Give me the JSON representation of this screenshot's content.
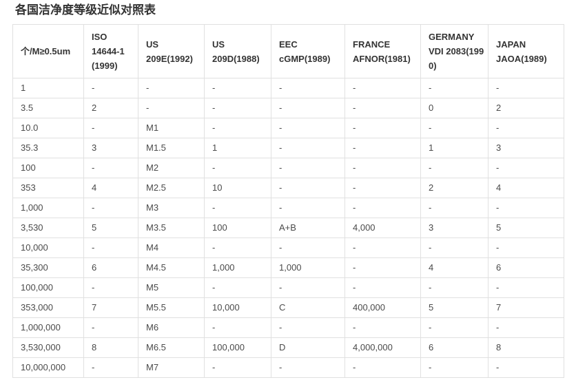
{
  "page": {
    "title": "各国洁净度等级近似对照表"
  },
  "table": {
    "columns": [
      {
        "id": "particles-per-m3",
        "lines": [
          "个/M≥0.5um"
        ]
      },
      {
        "id": "iso-14644-1",
        "lines": [
          "ISO",
          "14644-1",
          "(1999)"
        ]
      },
      {
        "id": "us-209e",
        "lines": [
          "US",
          "209E(1992)"
        ]
      },
      {
        "id": "us-209d",
        "lines": [
          "US",
          "209D(1988)"
        ]
      },
      {
        "id": "eec-cgmp",
        "lines": [
          "EEC",
          "cGMP(1989)"
        ]
      },
      {
        "id": "france-afnor",
        "lines": [
          "FRANCE",
          "AFNOR(1981)"
        ]
      },
      {
        "id": "germany-vdi",
        "lines": [
          "GERMANY",
          "VDI 2083(199",
          "0)"
        ]
      },
      {
        "id": "japan-jaoa",
        "lines": [
          "JAPAN",
          "JAOA(1989)"
        ]
      }
    ],
    "rows": [
      [
        "1",
        "-",
        "-",
        "-",
        "-",
        "-",
        "-",
        "-"
      ],
      [
        "3.5",
        "2",
        "-",
        "-",
        "-",
        "-",
        "0",
        "2"
      ],
      [
        "10.0",
        "-",
        "M1",
        "-",
        "-",
        "-",
        "-",
        "-"
      ],
      [
        "35.3",
        "3",
        "M1.5",
        "1",
        "-",
        "-",
        "1",
        "3"
      ],
      [
        "100",
        "-",
        "M2",
        "-",
        "-",
        "-",
        "-",
        "-"
      ],
      [
        "353",
        "4",
        "M2.5",
        "10",
        "-",
        "-",
        "2",
        "4"
      ],
      [
        "1,000",
        "-",
        "M3",
        "-",
        "-",
        "-",
        "-",
        "-"
      ],
      [
        "3,530",
        "5",
        "M3.5",
        "100",
        "A+B",
        "4,000",
        "3",
        "5"
      ],
      [
        "10,000",
        "-",
        "M4",
        "-",
        "-",
        "-",
        "-",
        "-"
      ],
      [
        "35,300",
        "6",
        "M4.5",
        "1,000",
        "1,000",
        "-",
        "4",
        "6"
      ],
      [
        "100,000",
        "-",
        "M5",
        "-",
        "-",
        "-",
        "-",
        "-"
      ],
      [
        "353,000",
        "7",
        "M5.5",
        "10,000",
        "C",
        "400,000",
        "5",
        "7"
      ],
      [
        "1,000,000",
        "-",
        "M6",
        "-",
        "-",
        "-",
        "-",
        "-"
      ],
      [
        "3,530,000",
        "8",
        "M6.5",
        "100,000",
        "D",
        "4,000,000",
        "6",
        "8"
      ],
      [
        "10,000,000",
        "-",
        "M7",
        "-",
        "-",
        "-",
        "-",
        "-"
      ]
    ],
    "colors": {
      "border": "#e0e0e0",
      "header_text": "#333333",
      "cell_text": "#4a4a4a",
      "title_text": "#333333",
      "background": "#ffffff"
    }
  }
}
